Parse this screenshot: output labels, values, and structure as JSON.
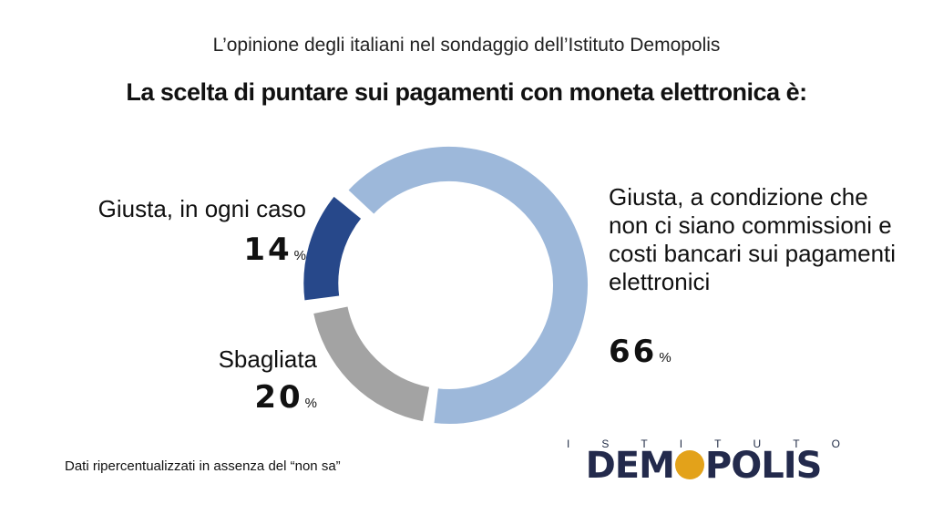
{
  "header": {
    "subtitle": "L’opinione degli italiani nel sondaggio dell’Istituto Demopolis",
    "title": "La scelta di puntare sui pagamenti con moneta elettronica è:"
  },
  "chart_data": {
    "type": "pie",
    "variant": "donut",
    "title": "La scelta di puntare sui pagamenti con moneta elettronica è:",
    "subtitle": "L’opinione degli italiani nel sondaggio dell’Istituto Demopolis",
    "unit": "%",
    "slices": [
      {
        "label": "Giusta, a condizione che non ci siano commissioni e costi bancari sui pagamenti elettronici",
        "value": 66,
        "color": "#9db8da"
      },
      {
        "label": "Sbagliata",
        "value": 20,
        "color": "#a3a3a3"
      },
      {
        "label": "Giusta, in ogni caso",
        "value": 14,
        "color": "#27488a"
      }
    ]
  },
  "labels": {
    "giusta_condizione": "Giusta, a condizione che non ci siano commissioni e costi bancari sui pagamenti elettronici",
    "v66": "66",
    "giusta_ogni_caso": "Giusta, in ogni caso",
    "v14": "14",
    "sbagliata": "Sbagliata",
    "v20": "20",
    "pct": "%"
  },
  "footer": {
    "note": "Dati ripercentualizzati in assenza del “non sa”"
  },
  "logo": {
    "top_letters": [
      "I",
      "S",
      "T",
      "I",
      "T",
      "U",
      "T",
      "O"
    ],
    "left": "DEM",
    "right": "POLIS",
    "text": "ISTITUTO DEMOPOLIS",
    "accent": "#e3a21a",
    "navy": "#232a4c"
  }
}
